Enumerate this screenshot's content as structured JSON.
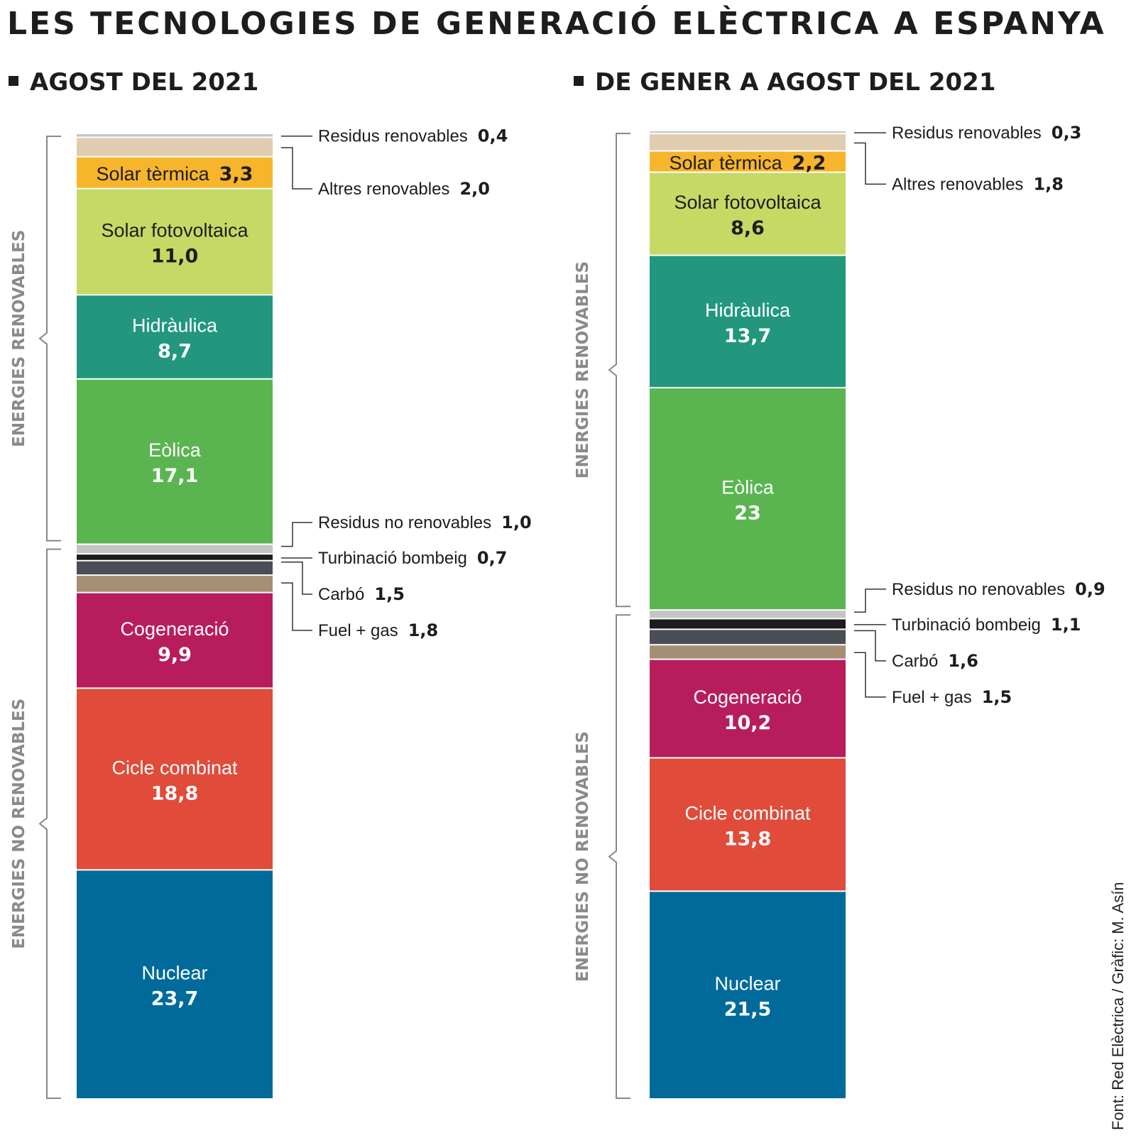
{
  "title": "LES TECNOLOGIES DE GENERACIÓ ELÈCTRICA A ESPANYA",
  "source": "Font: Red Elèctrica / Gràfic: M. Asín",
  "colors": {
    "residus_renovables": "#c5c5c5",
    "altres_renovables": "#e0ccb0",
    "solar_termica": "#f7b52b",
    "solar_fotovoltaica": "#c7d965",
    "hidraulica": "#22977e",
    "eolica": "#5ab551",
    "residus_no_renovables": "#c5c5c5",
    "turbinacio_bombeig": "#1c1c1c",
    "carbo": "#4a4e56",
    "fuel_gas": "#a58e74",
    "cogeneracio": "#b71d5c",
    "cicle_combinat": "#e14b3a",
    "nuclear": "#006b9b",
    "bracket": "#888888",
    "group_label": "#8a8a8a"
  },
  "chart_data": [
    {
      "type": "stacked-bar",
      "title": "AGOST DEL 2021",
      "unit": "%",
      "groups": [
        {
          "name": "ENERGIES RENOVABLES",
          "series": [
            "Residus renovables",
            "Altres renovables",
            "Solar tèrmica",
            "Solar fotovoltaica",
            "Hidràulica",
            "Eòlica"
          ]
        },
        {
          "name": "ENERGIES NO RENOVABLES",
          "series": [
            "Residus no renovables",
            "Turbinació bombeig",
            "Carbó",
            "Fuel + gas",
            "Cogeneració",
            "Cicle combinat",
            "Nuclear"
          ]
        }
      ],
      "segments": [
        {
          "key": "residus_renovables",
          "label": "Residus renovables",
          "display": "0,4",
          "value": 0.4
        },
        {
          "key": "altres_renovables",
          "label": "Altres renovables",
          "display": "2,0",
          "value": 2.0
        },
        {
          "key": "solar_termica",
          "label": "Solar tèrmica",
          "display": "3,3",
          "value": 3.3
        },
        {
          "key": "solar_fotovoltaica",
          "label": "Solar fotovoltaica",
          "display": "11,0",
          "value": 11.0
        },
        {
          "key": "hidraulica",
          "label": "Hidràulica",
          "display": "8,7",
          "value": 8.7
        },
        {
          "key": "eolica",
          "label": "Eòlica",
          "display": "17,1",
          "value": 17.1
        },
        {
          "key": "residus_no_renovables",
          "label": "Residus no renovables",
          "display": "1,0",
          "value": 1.0
        },
        {
          "key": "turbinacio_bombeig",
          "label": "Turbinació bombeig",
          "display": "0,7",
          "value": 0.7
        },
        {
          "key": "carbo",
          "label": "Carbó",
          "display": "1,5",
          "value": 1.5
        },
        {
          "key": "fuel_gas",
          "label": "Fuel + gas",
          "display": "1,8",
          "value": 1.8
        },
        {
          "key": "cogeneracio",
          "label": "Cogeneració",
          "display": "9,9",
          "value": 9.9
        },
        {
          "key": "cicle_combinat",
          "label": "Cicle combinat",
          "display": "18,8",
          "value": 18.8
        },
        {
          "key": "nuclear",
          "label": "Nuclear",
          "display": "23,7",
          "value": 23.7
        }
      ]
    },
    {
      "type": "stacked-bar",
      "title": "DE GENER A AGOST DEL 2021",
      "unit": "%",
      "groups": [
        {
          "name": "ENERGIES RENOVABLES",
          "series": [
            "Residus renovables",
            "Altres renovables",
            "Solar tèrmica",
            "Solar fotovoltaica",
            "Hidràulica",
            "Eòlica"
          ]
        },
        {
          "name": "ENERGIES NO RENOVABLES",
          "series": [
            "Residus no renovables",
            "Turbinació bombeig",
            "Carbó",
            "Fuel + gas",
            "Cogeneració",
            "Cicle combinat",
            "Nuclear"
          ]
        }
      ],
      "segments": [
        {
          "key": "residus_renovables",
          "label": "Residus renovables",
          "display": "0,3",
          "value": 0.3
        },
        {
          "key": "altres_renovables",
          "label": "Altres renovables",
          "display": "1,8",
          "value": 1.8
        },
        {
          "key": "solar_termica",
          "label": "Solar tèrmica",
          "display": "2,2",
          "value": 2.2
        },
        {
          "key": "solar_fotovoltaica",
          "label": "Solar fotovoltaica",
          "display": "8,6",
          "value": 8.6
        },
        {
          "key": "hidraulica",
          "label": "Hidràulica",
          "display": "13,7",
          "value": 13.7
        },
        {
          "key": "eolica",
          "label": "Eòlica",
          "display": "23",
          "value": 23
        },
        {
          "key": "residus_no_renovables",
          "label": "Residus no renovables",
          "display": "0,9",
          "value": 0.9
        },
        {
          "key": "turbinacio_bombeig",
          "label": "Turbinació bombeig",
          "display": "1,1",
          "value": 1.1
        },
        {
          "key": "carbo",
          "label": "Carbó",
          "display": "1,6",
          "value": 1.6
        },
        {
          "key": "fuel_gas",
          "label": "Fuel + gas",
          "display": "1,5",
          "value": 1.5
        },
        {
          "key": "cogeneracio",
          "label": "Cogeneració",
          "display": "10,2",
          "value": 10.2
        },
        {
          "key": "cicle_combinat",
          "label": "Cicle combinat",
          "display": "13,8",
          "value": 13.8
        },
        {
          "key": "nuclear",
          "label": "Nuclear",
          "display": "21,5",
          "value": 21.5
        }
      ]
    }
  ]
}
